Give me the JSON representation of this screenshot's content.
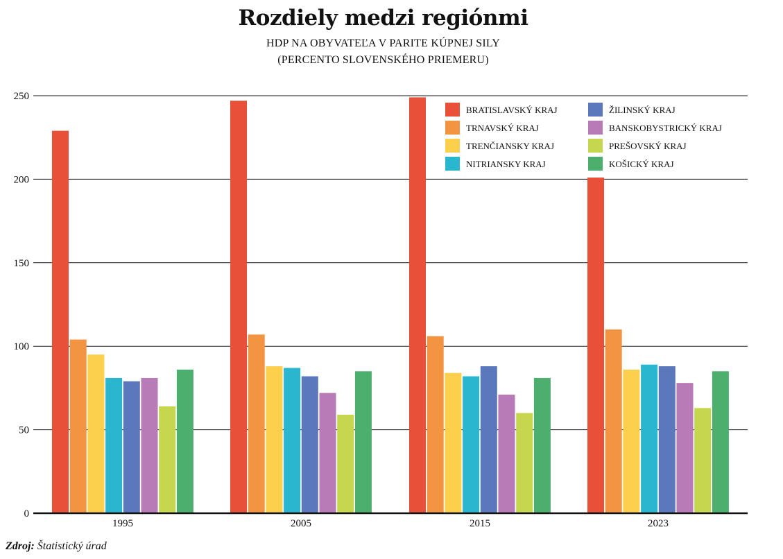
{
  "chart_data": {
    "type": "bar",
    "title": "Rozdiely medzi regiónmi",
    "subtitle_line1": "HDP NA OBYVATEĽA V PARITE KÚPNEJ SILY",
    "subtitle_line2": "(PERCENTO SLOVENSKÉHO PRIEMERU)",
    "categories": [
      "1995",
      "2005",
      "2015",
      "2023"
    ],
    "yticks": [
      "0",
      "50",
      "100",
      "150",
      "200",
      "250"
    ],
    "ylim": [
      0,
      250
    ],
    "grid": true,
    "legend_position": "top-right",
    "series": [
      {
        "name": "BRATISLAVSKÝ KRAJ",
        "color": "#e8503a",
        "values": [
          229,
          247,
          249,
          201
        ]
      },
      {
        "name": "TRNAVSKÝ KRAJ",
        "color": "#f39443",
        "values": [
          104,
          107,
          106,
          110
        ]
      },
      {
        "name": "TRENČIANSKY KRAJ",
        "color": "#fcd04c",
        "values": [
          95,
          88,
          84,
          86
        ]
      },
      {
        "name": "NITRIANSKY KRAJ",
        "color": "#2bb6d0",
        "values": [
          81,
          87,
          82,
          89
        ]
      },
      {
        "name": "ŽILINSKÝ KRAJ",
        "color": "#5b78bd",
        "values": [
          79,
          82,
          88,
          88
        ]
      },
      {
        "name": "BANSKOBYSTRICKÝ KRAJ",
        "color": "#b97ab8",
        "values": [
          81,
          72,
          71,
          78
        ]
      },
      {
        "name": "PREŠOVSKÝ KRAJ",
        "color": "#c7d64f",
        "values": [
          64,
          59,
          60,
          63
        ]
      },
      {
        "name": "KOŠICKÝ KRAJ",
        "color": "#4caf6e",
        "values": [
          86,
          85,
          81,
          85
        ]
      }
    ]
  },
  "source_label": "Zdroj:",
  "source_text": "Štatistický úrad"
}
